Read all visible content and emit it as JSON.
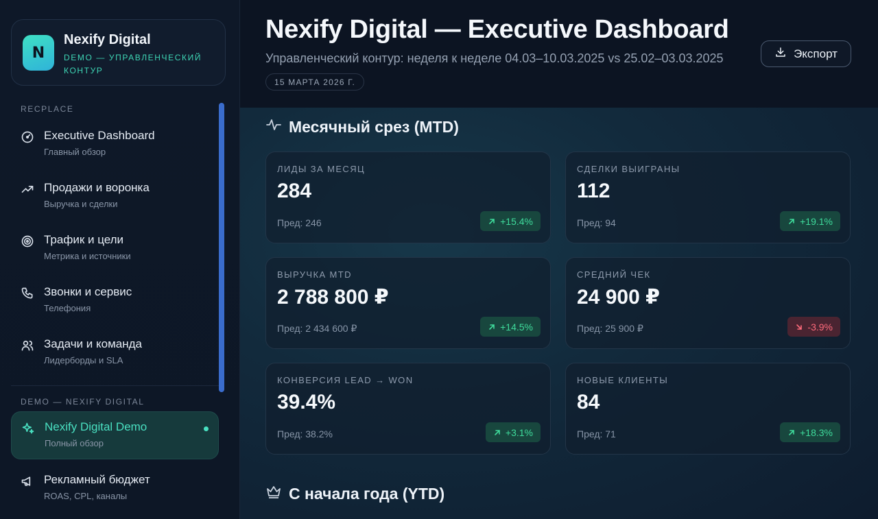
{
  "brand": {
    "logo_letter": "N",
    "name": "Nexify Digital",
    "subtitle": "DEMO — УПРАВЛЕНЧЕСКИЙ КОНТУР"
  },
  "sidebar": {
    "section1_label": "RECPLACE",
    "items": [
      {
        "title": "Executive Dashboard",
        "sub": "Главный обзор",
        "icon": "gauge-icon"
      },
      {
        "title": "Продажи и воронка",
        "sub": "Выручка и сделки",
        "icon": "trend-up-icon"
      },
      {
        "title": "Трафик и цели",
        "sub": "Метрика и источники",
        "icon": "target-icon"
      },
      {
        "title": "Звонки и сервис",
        "sub": "Телефония",
        "icon": "phone-icon"
      },
      {
        "title": "Задачи и команда",
        "sub": "Лидерборды и SLA",
        "icon": "users-icon"
      }
    ],
    "section2_label": "DEMO — NEXIFY DIGITAL",
    "items2": [
      {
        "title": "Nexify Digital Demo",
        "sub": "Полный обзор",
        "icon": "sparkles-icon",
        "active": true
      },
      {
        "title": "Рекламный бюджет",
        "sub": "ROAS, CPL, каналы",
        "icon": "megaphone-icon"
      }
    ]
  },
  "header": {
    "title": "Nexify Digital — Executive Dashboard",
    "subtitle": "Управленческий контур: неделя к неделе 04.03–10.03.2025 vs 25.02–03.03.2025",
    "date": "15 МАРТА 2026 Г.",
    "export_label": "Экспорт"
  },
  "main": {
    "mtd_title": "Месячный срез (MTD)",
    "ytd_title": "С начала года (YTD)",
    "kpis": [
      {
        "label": "ЛИДЫ ЗА МЕСЯЦ",
        "value": "284",
        "prev": "Пред: 246",
        "delta": "+15.4%",
        "dir": "up"
      },
      {
        "label": "СДЕЛКИ ВЫИГРАНЫ",
        "value": "112",
        "prev": "Пред: 94",
        "delta": "+19.1%",
        "dir": "up"
      },
      {
        "label": "ВЫРУЧКА MTD",
        "value": "2 788 800 ₽",
        "prev": "Пред: 2 434 600 ₽",
        "delta": "+14.5%",
        "dir": "up"
      },
      {
        "label": "СРЕДНИЙ ЧЕК",
        "value": "24 900 ₽",
        "prev": "Пред: 25 900 ₽",
        "delta": "-3.9%",
        "dir": "down"
      },
      {
        "label": "КОНВЕРСИЯ LEAD → WON",
        "value": "39.4%",
        "prev": "Пред: 38.2%",
        "delta": "+3.1%",
        "dir": "up"
      },
      {
        "label": "НОВЫЕ КЛИЕНТЫ",
        "value": "84",
        "prev": "Пред: 71",
        "delta": "+18.3%",
        "dir": "up"
      }
    ]
  },
  "colors": {
    "accent": "#49e0c1",
    "positive": "#3fdc9c",
    "negative": "#ff6b7c",
    "scrollbar": "#3a6ccc"
  }
}
